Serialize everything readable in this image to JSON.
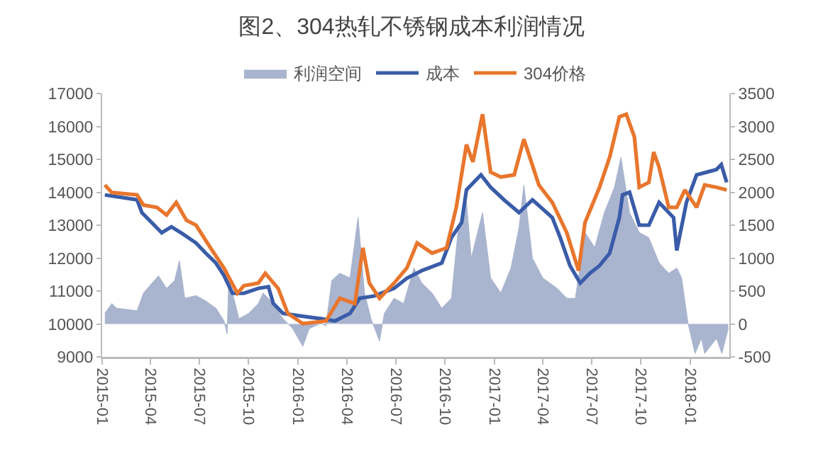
{
  "chart_data": {
    "type": "line",
    "title": "图2、304热轧不锈钢成本利润情况",
    "xlim": [
      "2015-01-01",
      "2018-03-15"
    ],
    "xticks": [
      {
        "value": "2015-01-01",
        "label": "2015-01"
      },
      {
        "value": "2015-04-01",
        "label": "2015-04"
      },
      {
        "value": "2015-07-01",
        "label": "2015-07"
      },
      {
        "value": "2015-10-01",
        "label": "2015-10"
      },
      {
        "value": "2016-01-01",
        "label": "2016-01"
      },
      {
        "value": "2016-04-01",
        "label": "2016-04"
      },
      {
        "value": "2016-07-01",
        "label": "2016-07"
      },
      {
        "value": "2016-10-01",
        "label": "2016-10"
      },
      {
        "value": "2017-01-01",
        "label": "2017-01"
      },
      {
        "value": "2017-04-01",
        "label": "2017-04"
      },
      {
        "value": "2017-07-01",
        "label": "2017-07"
      },
      {
        "value": "2017-10-01",
        "label": "2017-10"
      },
      {
        "value": "2018-01-01",
        "label": "2018-01"
      }
    ],
    "ylim": [
      9000,
      17000
    ],
    "yticks": [
      9000,
      10000,
      11000,
      12000,
      13000,
      14000,
      15000,
      16000,
      17000
    ],
    "y2lim": [
      -500,
      3500
    ],
    "y2ticks": [
      -500,
      0,
      500,
      1000,
      1500,
      2000,
      2500,
      3000,
      3500
    ],
    "grid": false,
    "legend": "top",
    "marker": "none",
    "line_style": "solid",
    "series": [
      {
        "name": "利润空间",
        "type": "area",
        "axis": "y2",
        "color": "#a9b4cf",
        "x": [
          "2015-01-06",
          "2015-01-19",
          "2015-01-28",
          "2015-03-07",
          "2015-03-19",
          "2015-04-04",
          "2015-04-16",
          "2015-05-01",
          "2015-05-16",
          "2015-05-25",
          "2015-06-04",
          "2015-06-25",
          "2015-07-13",
          "2015-08-01",
          "2015-08-16",
          "2015-08-22",
          "2015-08-25",
          "2015-09-13",
          "2015-10-01",
          "2015-10-19",
          "2015-10-28",
          "2015-11-16",
          "2015-12-04",
          "2015-12-22",
          "2016-01-10",
          "2016-01-22",
          "2016-02-13",
          "2016-02-22",
          "2016-03-04",
          "2016-03-19",
          "2016-04-07",
          "2016-04-22",
          "2016-05-04",
          "2016-05-16",
          "2016-06-01",
          "2016-06-10",
          "2016-06-28",
          "2016-07-16",
          "2016-08-04",
          "2016-08-19",
          "2016-09-07",
          "2016-09-25",
          "2016-10-13",
          "2016-10-25",
          "2016-11-10",
          "2016-11-19",
          "2016-12-10",
          "2016-12-25",
          "2017-01-13",
          "2017-02-01",
          "2017-02-16",
          "2017-02-25",
          "2017-03-13",
          "2017-04-01",
          "2017-04-28",
          "2017-05-16",
          "2017-06-01",
          "2017-06-19",
          "2017-07-07",
          "2017-07-25",
          "2017-08-13",
          "2017-08-25",
          "2017-09-10",
          "2017-09-28",
          "2017-10-16",
          "2017-11-04",
          "2017-11-22",
          "2017-12-07",
          "2017-12-16",
          "2017-12-28",
          "2018-01-10",
          "2018-01-22",
          "2018-01-28",
          "2018-02-19",
          "2018-03-01",
          "2018-03-13"
        ],
        "values": [
          160,
          310,
          240,
          200,
          470,
          620,
          730,
          540,
          660,
          960,
          390,
          430,
          350,
          240,
          50,
          -150,
          700,
          80,
          160,
          310,
          470,
          310,
          80,
          -70,
          -340,
          -70,
          10,
          -30,
          660,
          770,
          700,
          1620,
          470,
          80,
          -260,
          160,
          390,
          310,
          850,
          620,
          470,
          240,
          390,
          1390,
          1850,
          1000,
          1690,
          700,
          470,
          850,
          1460,
          2110,
          1000,
          700,
          540,
          390,
          390,
          1390,
          1160,
          1690,
          2080,
          2530,
          1690,
          1390,
          1310,
          930,
          770,
          850,
          700,
          10,
          -450,
          -220,
          -450,
          -220,
          -450,
          -70
        ]
      },
      {
        "name": "成本",
        "axis": "y",
        "color": "#3a5ca8",
        "x": [
          "2015-01-06",
          "2015-03-07",
          "2015-03-16",
          "2015-04-13",
          "2015-04-22",
          "2015-05-10",
          "2015-05-28",
          "2015-06-25",
          "2015-07-13",
          "2015-08-01",
          "2015-08-16",
          "2015-09-01",
          "2015-09-22",
          "2015-10-19",
          "2015-11-07",
          "2015-11-16",
          "2015-12-04",
          "2016-01-07",
          "2016-02-13",
          "2016-03-10",
          "2016-04-07",
          "2016-04-25",
          "2016-05-22",
          "2016-06-28",
          "2016-07-22",
          "2016-08-19",
          "2016-09-25",
          "2016-10-13",
          "2016-11-01",
          "2016-11-10",
          "2016-12-07",
          "2016-12-25",
          "2017-01-19",
          "2017-02-16",
          "2017-03-13",
          "2017-04-19",
          "2017-05-04",
          "2017-05-22",
          "2017-06-10",
          "2017-06-28",
          "2017-07-16",
          "2017-08-04",
          "2017-08-22",
          "2017-08-28",
          "2017-09-10",
          "2017-09-28",
          "2017-10-16",
          "2017-11-04",
          "2017-12-01",
          "2017-12-07",
          "2017-12-25",
          "2018-01-13",
          "2018-02-01",
          "2018-02-19",
          "2018-02-28",
          "2018-03-10"
        ],
        "values": [
          13920,
          13770,
          13380,
          12920,
          12770,
          12950,
          12770,
          12460,
          12150,
          11850,
          11470,
          10930,
          10930,
          11080,
          11130,
          10620,
          10320,
          10240,
          10160,
          10090,
          10320,
          10780,
          10850,
          11080,
          11390,
          11620,
          11850,
          12620,
          13080,
          14070,
          14530,
          14150,
          13770,
          13380,
          13770,
          13230,
          12610,
          11770,
          11240,
          11540,
          11770,
          12150,
          13230,
          13920,
          14000,
          13000,
          13000,
          13690,
          13230,
          12230,
          13690,
          14530,
          14610,
          14690,
          14840,
          14300
        ]
      },
      {
        "name": "304价格",
        "axis": "y",
        "color": "#e8762d",
        "x": [
          "2015-01-06",
          "2015-01-19",
          "2015-03-07",
          "2015-03-19",
          "2015-04-13",
          "2015-05-01",
          "2015-05-19",
          "2015-06-07",
          "2015-06-25",
          "2015-07-22",
          "2015-08-16",
          "2015-09-10",
          "2015-09-22",
          "2015-10-19",
          "2015-11-01",
          "2015-11-25",
          "2015-12-13",
          "2016-01-10",
          "2016-02-22",
          "2016-03-19",
          "2016-04-16",
          "2016-05-01",
          "2016-05-13",
          "2016-06-01",
          "2016-06-28",
          "2016-07-22",
          "2016-08-10",
          "2016-09-07",
          "2016-10-04",
          "2016-10-22",
          "2016-11-10",
          "2016-11-22",
          "2016-12-10",
          "2016-12-25",
          "2017-01-13",
          "2017-02-07",
          "2017-02-25",
          "2017-03-25",
          "2017-04-19",
          "2017-05-16",
          "2017-06-07",
          "2017-06-19",
          "2017-07-16",
          "2017-08-04",
          "2017-08-22",
          "2017-09-04",
          "2017-09-19",
          "2017-09-28",
          "2017-10-16",
          "2017-10-25",
          "2017-11-04",
          "2017-11-22",
          "2017-12-07",
          "2017-12-22",
          "2018-01-13",
          "2018-01-28",
          "2018-02-19",
          "2018-03-10"
        ],
        "values": [
          14220,
          13990,
          13920,
          13610,
          13540,
          13310,
          13690,
          13150,
          13000,
          12310,
          11700,
          10930,
          11160,
          11240,
          11540,
          11080,
          10320,
          10010,
          10090,
          10780,
          10620,
          12310,
          11240,
          10780,
          11240,
          11700,
          12460,
          12150,
          12310,
          13540,
          15450,
          14920,
          16370,
          14610,
          14460,
          14530,
          15610,
          14220,
          13690,
          12770,
          11620,
          13080,
          14150,
          15070,
          16290,
          16370,
          15680,
          14150,
          14300,
          15220,
          14760,
          13540,
          13540,
          14070,
          13540,
          14220,
          14150,
          14070
        ]
      }
    ]
  }
}
